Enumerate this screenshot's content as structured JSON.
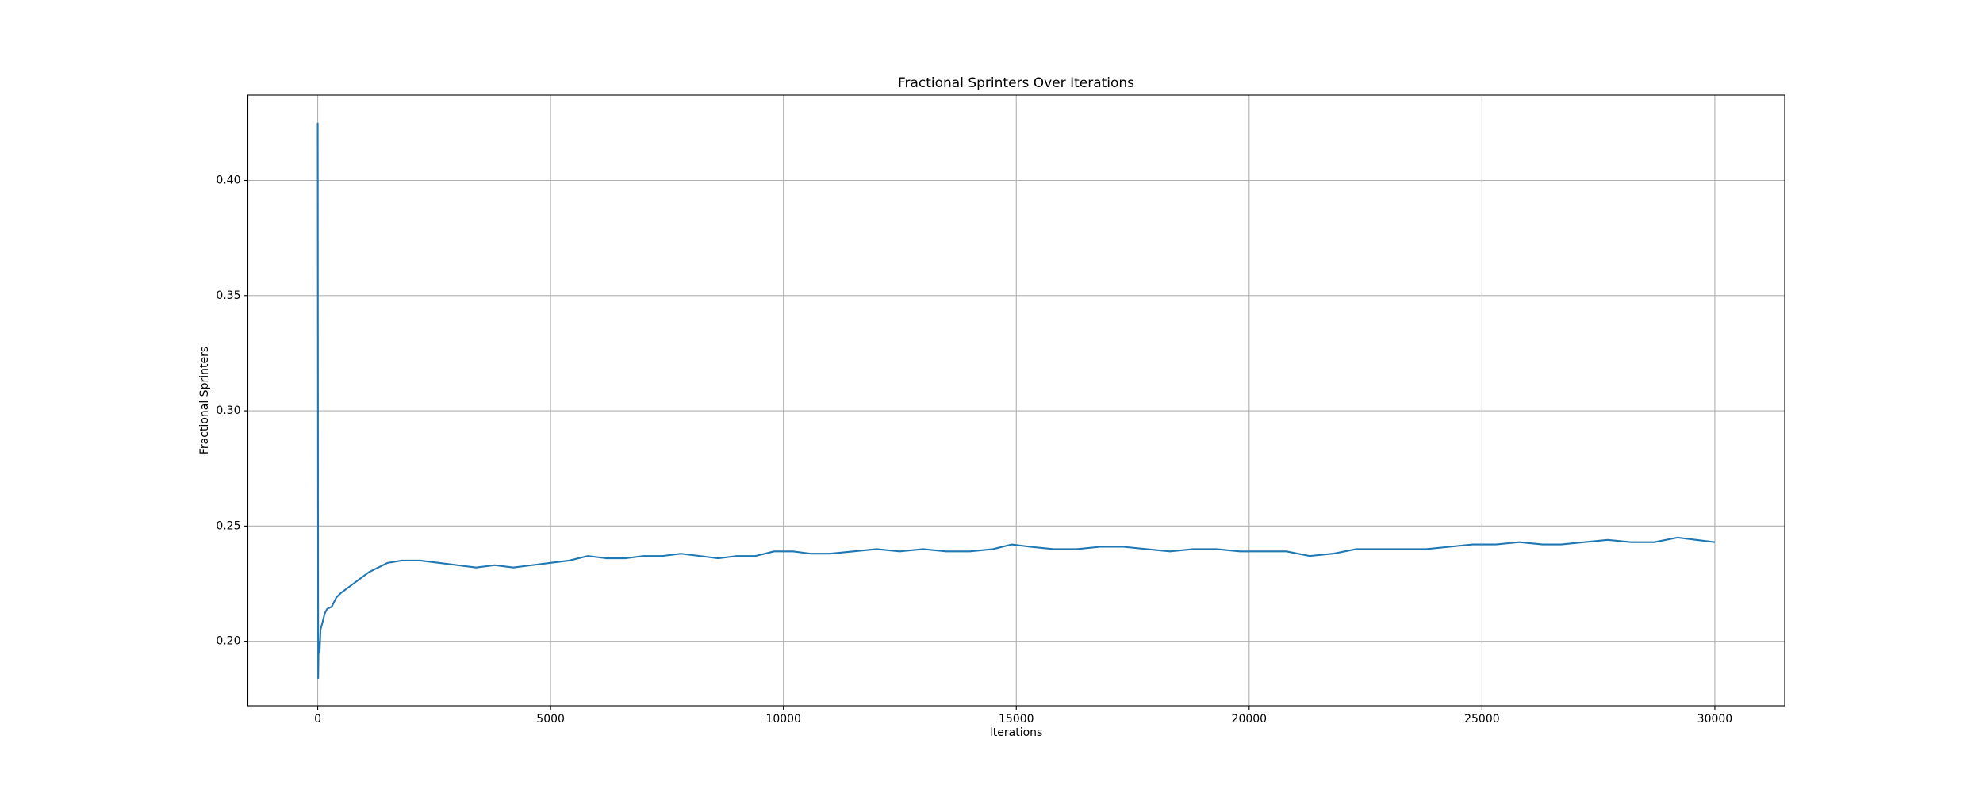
{
  "chart_data": {
    "type": "line",
    "title": "Fractional Sprinters Over Iterations",
    "xlabel": "Iterations",
    "ylabel": "Fractional Sprinters",
    "color": "#1f77b4",
    "grid": true,
    "xlim": [
      -1500,
      31500
    ],
    "xticks": [
      0,
      5000,
      10000,
      15000,
      20000,
      25000,
      30000
    ],
    "ylim": [
      0.172,
      0.437
    ],
    "yticks": [
      {
        "value": 0.2,
        "label": "0.20"
      },
      0.25,
      {
        "value": 0.3,
        "label": "0.30"
      },
      0.35,
      {
        "value": 0.4,
        "label": "0.40"
      }
    ],
    "x": [
      0,
      5,
      10,
      20,
      40,
      60,
      100,
      150,
      200,
      300,
      400,
      500,
      700,
      900,
      1100,
      1300,
      1500,
      1800,
      2200,
      2600,
      3000,
      3400,
      3800,
      4200,
      4600,
      5000,
      5400,
      5800,
      6200,
      6600,
      7000,
      7400,
      7800,
      8200,
      8600,
      9000,
      9400,
      9800,
      10200,
      10600,
      11000,
      11500,
      12000,
      12500,
      13000,
      13500,
      14000,
      14500,
      14900,
      15300,
      15800,
      16300,
      16800,
      17300,
      17800,
      18300,
      18800,
      19300,
      19800,
      20300,
      20800,
      21300,
      21800,
      22300,
      22800,
      23300,
      23800,
      24300,
      24800,
      25300,
      25800,
      26300,
      26700,
      27200,
      27700,
      28200,
      28700,
      29200,
      29600,
      30000
    ],
    "values": [
      0.425,
      0.3,
      0.184,
      0.2,
      0.195,
      0.205,
      0.208,
      0.212,
      0.214,
      0.215,
      0.219,
      0.221,
      0.224,
      0.227,
      0.23,
      0.232,
      0.234,
      0.235,
      0.235,
      0.234,
      0.233,
      0.232,
      0.233,
      0.232,
      0.233,
      0.234,
      0.235,
      0.237,
      0.236,
      0.236,
      0.237,
      0.237,
      0.238,
      0.237,
      0.236,
      0.237,
      0.237,
      0.239,
      0.239,
      0.238,
      0.238,
      0.239,
      0.24,
      0.239,
      0.24,
      0.239,
      0.239,
      0.24,
      0.242,
      0.241,
      0.24,
      0.24,
      0.241,
      0.241,
      0.24,
      0.239,
      0.24,
      0.24,
      0.239,
      0.239,
      0.239,
      0.237,
      0.238,
      0.24,
      0.24,
      0.24,
      0.24,
      0.241,
      0.242,
      0.242,
      0.243,
      0.242,
      0.242,
      0.243,
      0.244,
      0.243,
      0.243,
      0.245,
      0.244,
      0.243
    ]
  }
}
